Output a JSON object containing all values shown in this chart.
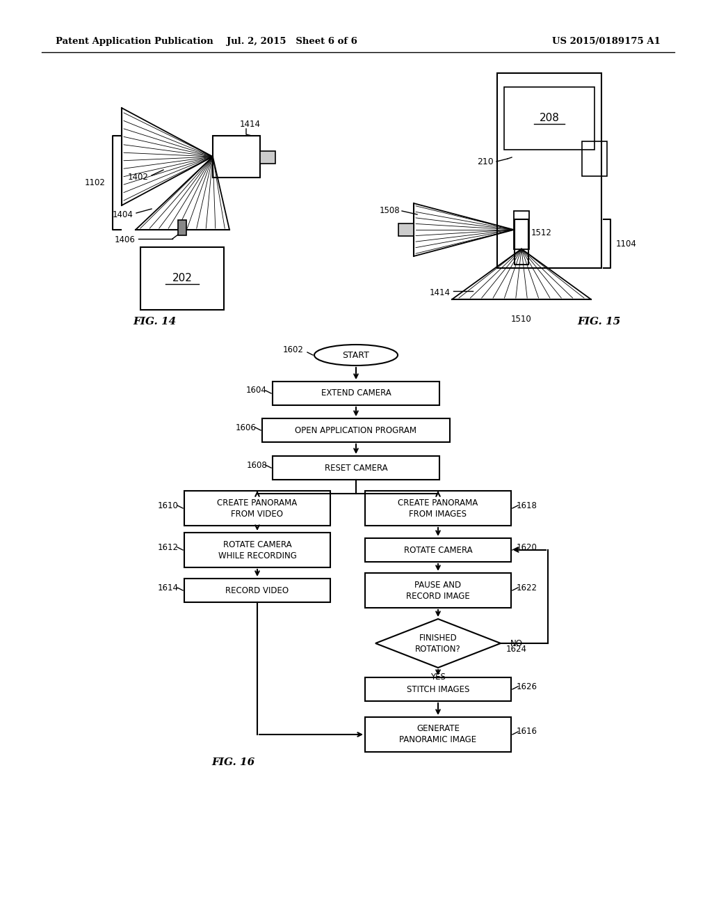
{
  "header_left": "Patent Application Publication",
  "header_mid": "Jul. 2, 2015   Sheet 6 of 6",
  "header_right": "US 2015/0189175 A1",
  "bg_color": "#ffffff",
  "line_color": "#000000"
}
